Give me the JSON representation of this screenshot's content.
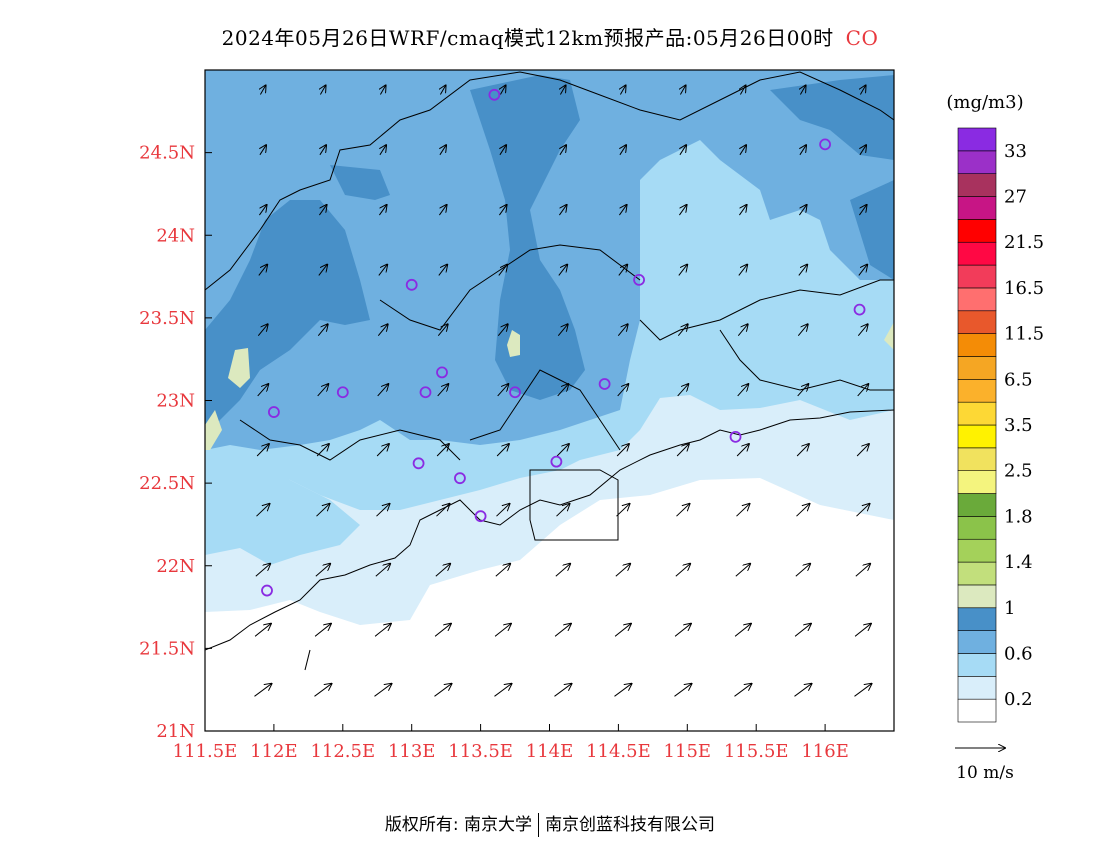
{
  "title": {
    "main": "2024年05月26日WRF/cmaq模式12km预报产品:05月26日00时",
    "species": "CO"
  },
  "map": {
    "lon_range": [
      111.5,
      116.5
    ],
    "lat_range": [
      21.0,
      25.0
    ],
    "x_ticks": [
      {
        "value": 111.5,
        "label": "111.5E"
      },
      {
        "value": 112.0,
        "label": "112E"
      },
      {
        "value": 112.5,
        "label": "112.5E"
      },
      {
        "value": 113.0,
        "label": "113E"
      },
      {
        "value": 113.5,
        "label": "113.5E"
      },
      {
        "value": 114.0,
        "label": "114E"
      },
      {
        "value": 114.5,
        "label": "114.5E"
      },
      {
        "value": 115.0,
        "label": "115E"
      },
      {
        "value": 115.5,
        "label": "115.5E"
      },
      {
        "value": 116.0,
        "label": "116E"
      }
    ],
    "y_ticks": [
      {
        "value": 21.0,
        "label": "21N"
      },
      {
        "value": 21.5,
        "label": "21.5N"
      },
      {
        "value": 22.0,
        "label": "22N"
      },
      {
        "value": 22.5,
        "label": "22.5N"
      },
      {
        "value": 23.0,
        "label": "23N"
      },
      {
        "value": 23.5,
        "label": "23.5N"
      },
      {
        "value": 24.0,
        "label": "24N"
      },
      {
        "value": 24.5,
        "label": "24.5N"
      }
    ],
    "stations": [
      [
        113.6,
        24.85
      ],
      [
        116.0,
        24.55
      ],
      [
        113.0,
        23.7
      ],
      [
        114.65,
        23.73
      ],
      [
        116.25,
        23.55
      ],
      [
        112.5,
        23.05
      ],
      [
        113.1,
        23.05
      ],
      [
        113.22,
        23.17
      ],
      [
        113.75,
        23.05
      ],
      [
        114.4,
        23.1
      ],
      [
        112.0,
        22.93
      ],
      [
        113.05,
        22.62
      ],
      [
        113.35,
        22.53
      ],
      [
        114.05,
        22.63
      ],
      [
        115.35,
        22.78
      ],
      [
        113.5,
        22.3
      ],
      [
        111.95,
        21.85
      ]
    ]
  },
  "colorbar": {
    "unit": "(mg/m3)",
    "bins": [
      "#ffffff",
      "#d9eefa",
      "#a6dbf5",
      "#6fb0e0",
      "#4890c8",
      "#dce9bf",
      "#c2df7c",
      "#a4d15a",
      "#8bc34a",
      "#6aaa3a",
      "#f4f47e",
      "#f1e25e",
      "#fff200",
      "#fdd835",
      "#fbb12b",
      "#f5a623",
      "#f48c06",
      "#e8582c",
      "#ff6f6f",
      "#f23c5a",
      "#ff0844",
      "#ff0000",
      "#c71585",
      "#a8325e",
      "#9b30c8",
      "#8a2be2"
    ],
    "labels": [
      {
        "bin": 1,
        "text": "0.2"
      },
      {
        "bin": 3,
        "text": "0.6"
      },
      {
        "bin": 5,
        "text": "1"
      },
      {
        "bin": 7,
        "text": "1.4"
      },
      {
        "bin": 9,
        "text": "1.8"
      },
      {
        "bin": 11,
        "text": "2.5"
      },
      {
        "bin": 13,
        "text": "3.5"
      },
      {
        "bin": 15,
        "text": "6.5"
      },
      {
        "bin": 17,
        "text": "11.5"
      },
      {
        "bin": 19,
        "text": "16.5"
      },
      {
        "bin": 21,
        "text": "21.5"
      },
      {
        "bin": 23,
        "text": "27"
      },
      {
        "bin": 25,
        "text": "33"
      }
    ]
  },
  "wind_legend": {
    "label": "10 m/s"
  },
  "footer": {
    "left": "版权所有: 南京大学",
    "right": "南京创蓝科技有限公司"
  }
}
